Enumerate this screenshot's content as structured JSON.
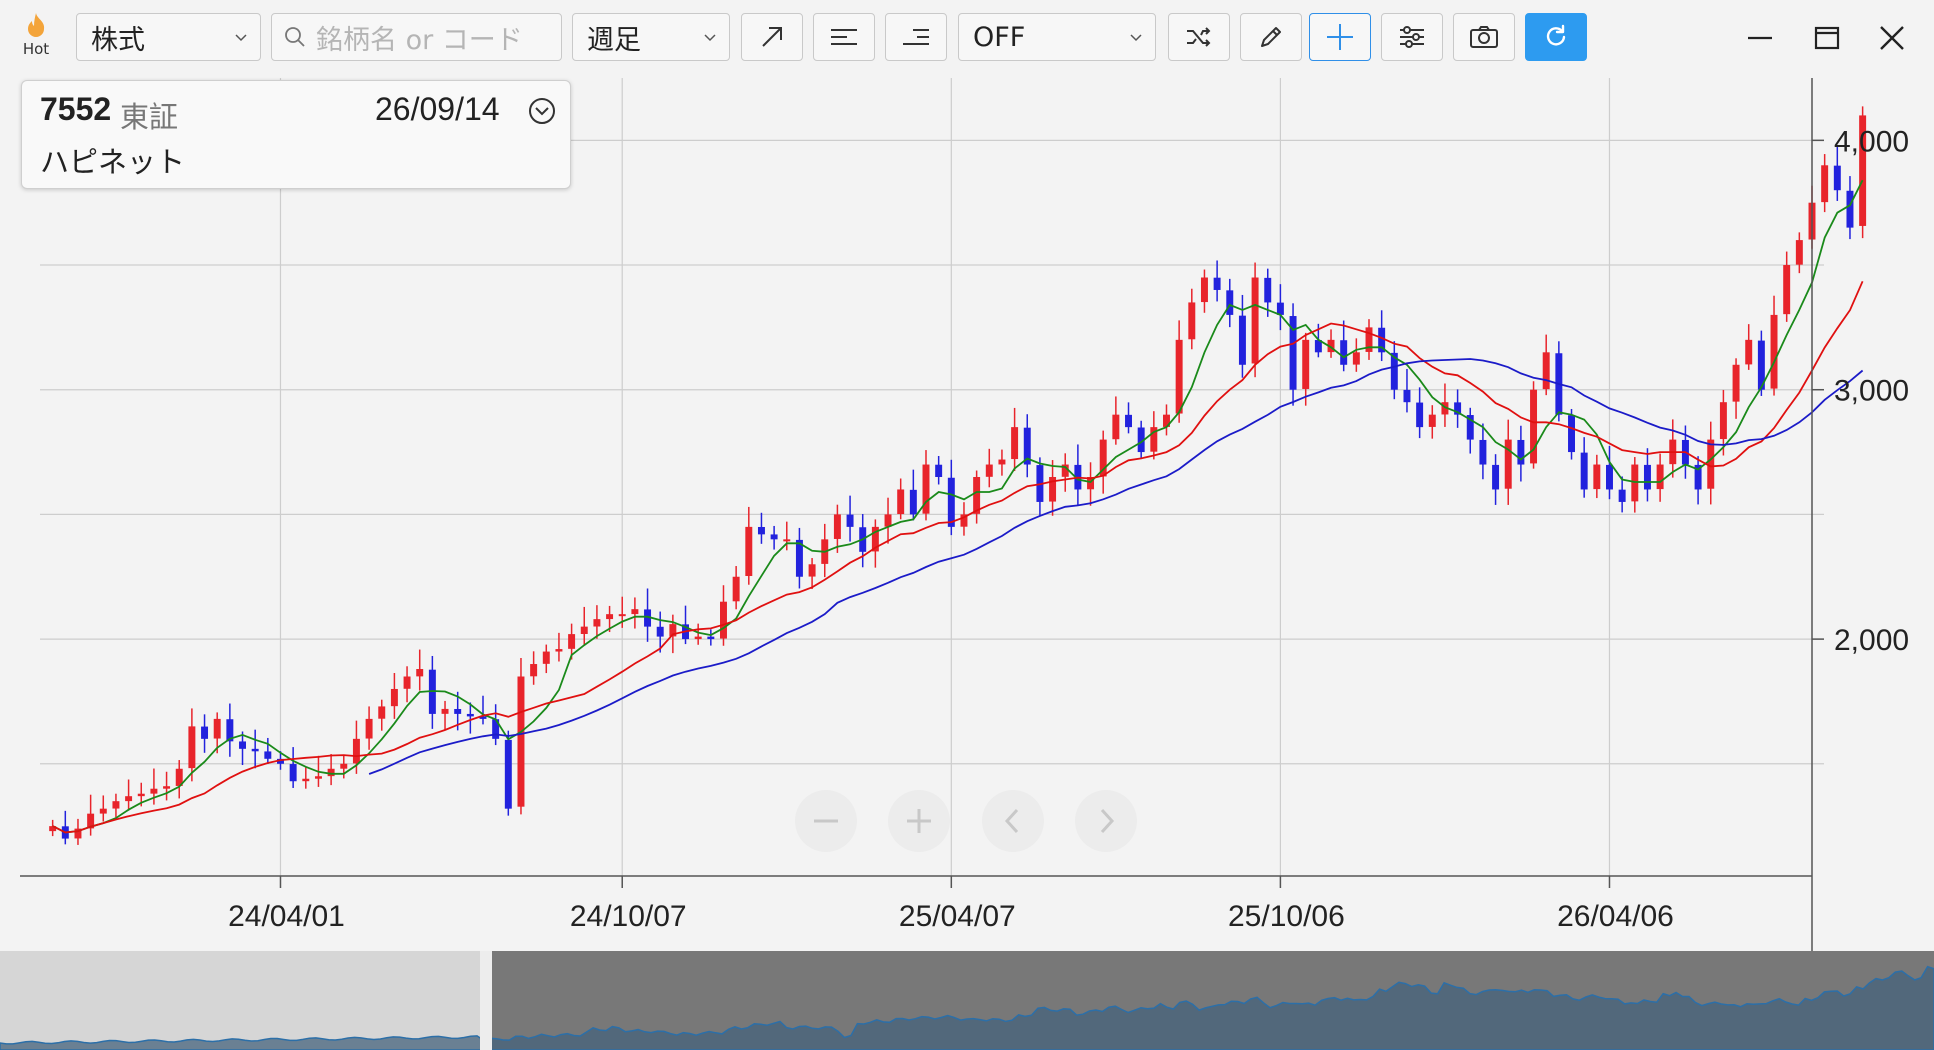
{
  "toolbar": {
    "hot_label": "Hot",
    "market_select": "株式",
    "search_placeholder": "銘柄名 or コード",
    "period_select": "週足",
    "indicator_select": "OFF"
  },
  "info_card": {
    "code": "7552",
    "exchange": "東証",
    "date": "26/09/14",
    "name": "ハピネット"
  },
  "colors": {
    "up": "#e8242b",
    "down": "#2222dd",
    "ma_short": "#1a8a1a",
    "ma_mid": "#e01010",
    "ma_long": "#1b1bc8",
    "accent": "#2d9bf0"
  },
  "icons": [
    "flame-icon",
    "search-icon",
    "trend-line-icon",
    "horizontal-line-left-icon",
    "horizontal-line-right-icon",
    "shuffle-icon",
    "pencil-icon",
    "crosshair-icon",
    "settings-sliders-icon",
    "camera-icon",
    "refresh-icon",
    "minimize-icon",
    "maximize-icon",
    "close-icon",
    "zoom-out-icon",
    "zoom-in-icon",
    "scroll-left-icon",
    "scroll-right-icon"
  ],
  "chart_data": {
    "type": "candlestick",
    "period": "weekly",
    "y_ticks": [
      "4,000",
      "3,000",
      "2,000"
    ],
    "y_tick_values": [
      4000,
      3000,
      2000
    ],
    "ylim": [
      1050,
      4250
    ],
    "x_ticks": [
      "24/04/01",
      "24/10/07",
      "25/04/07",
      "25/10/06",
      "26/04/06"
    ],
    "x_range_weeks": [
      0,
      140
    ],
    "x_tick_weeks": [
      19,
      46,
      72,
      98,
      124
    ],
    "closes": [
      1250,
      1200,
      1240,
      1300,
      1320,
      1350,
      1370,
      1380,
      1400,
      1410,
      1480,
      1650,
      1600,
      1680,
      1590,
      1560,
      1550,
      1520,
      1500,
      1430,
      1440,
      1450,
      1480,
      1500,
      1600,
      1680,
      1730,
      1800,
      1850,
      1880,
      1700,
      1720,
      1700,
      1690,
      1680,
      1600,
      1320,
      1850,
      1900,
      1950,
      1960,
      2020,
      2050,
      2080,
      2100,
      2100,
      2120,
      2050,
      2010,
      2060,
      2000,
      2010,
      2000,
      2150,
      2250,
      2450,
      2420,
      2400,
      2400,
      2250,
      2300,
      2400,
      2500,
      2450,
      2350,
      2450,
      2500,
      2600,
      2500,
      2700,
      2650,
      2450,
      2500,
      2650,
      2700,
      2720,
      2850,
      2700,
      2550,
      2650,
      2700,
      2600,
      2650,
      2800,
      2900,
      2850,
      2750,
      2850,
      2900,
      3200,
      3350,
      3450,
      3400,
      3300,
      3100,
      3450,
      3350,
      3300,
      3000,
      3200,
      3150,
      3200,
      3100,
      3150,
      3250,
      3150,
      3000,
      2950,
      2850,
      2900,
      2950,
      2900,
      2800,
      2700,
      2600,
      2800,
      2700,
      3000,
      3150,
      2900,
      2750,
      2600,
      2700,
      2600,
      2550,
      2700,
      2600,
      2700,
      2800,
      2700,
      2600,
      2800,
      2950,
      3100,
      3200,
      3000,
      3300,
      3500,
      3600,
      3750,
      3900,
      3800,
      3650,
      4100
    ],
    "ma_short": {
      "name": "",
      "color": "#1a8a1a"
    },
    "ma_mid": {
      "name": "",
      "color": "#e01010"
    },
    "ma_long": {
      "name": "",
      "color": "#1b1bc8"
    }
  }
}
